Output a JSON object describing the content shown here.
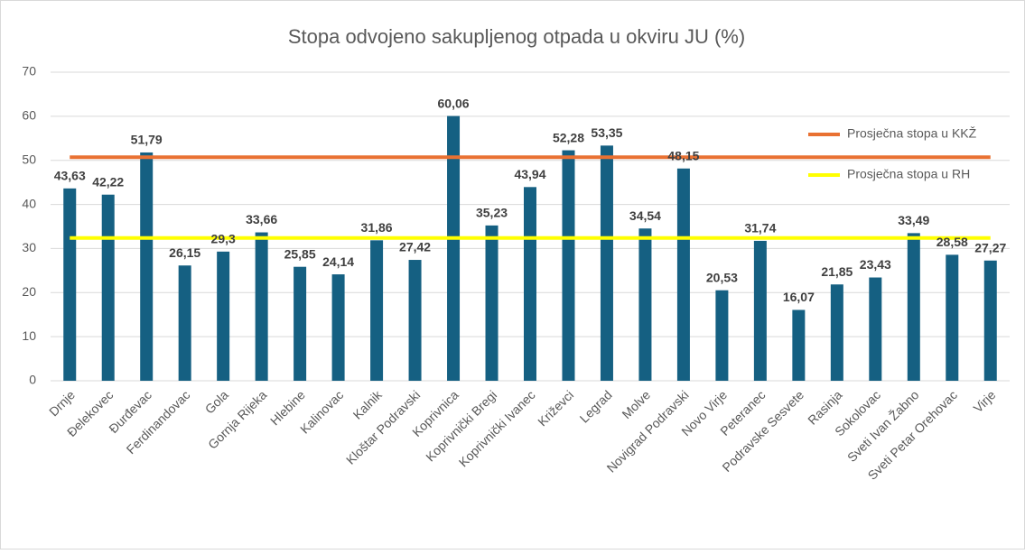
{
  "chart_data": {
    "type": "bar",
    "title": "Stopa odvojeno sakupljenog otpada u okviru JU (%)",
    "categories": [
      "Drnje",
      "Đelekovec",
      "Đurđevac",
      "Ferdinandovac",
      "Gola",
      "Gornja Rijeka",
      "Hlebine",
      "Kalinovac",
      "Kalnik",
      "Kloštar Podravski",
      "Koprivnica",
      "Koprivnički Bregi",
      "Koprivnički Ivanec",
      "Križevci",
      "Legrad",
      "Molve",
      "Novigrad Podravski",
      "Novo Virje",
      "Peteranec",
      "Podravske Sesvete",
      "Rasinja",
      "Sokolovac",
      "Sveti Ivan Žabno",
      "Sveti Petar Orehovac",
      "Virje"
    ],
    "values": [
      43.63,
      42.22,
      51.79,
      26.15,
      29.3,
      33.66,
      25.85,
      24.14,
      31.86,
      27.42,
      60.06,
      35.23,
      43.94,
      52.28,
      53.35,
      34.54,
      48.15,
      20.53,
      31.74,
      16.07,
      21.85,
      23.43,
      33.49,
      28.58,
      27.27
    ],
    "value_labels": [
      "43,63",
      "42,22",
      "51,79",
      "26,15",
      "29,3",
      "33,66",
      "25,85",
      "24,14",
      "31,86",
      "27,42",
      "60,06",
      "35,23",
      "43,94",
      "52,28",
      "53,35",
      "34,54",
      "48,15",
      "20,53",
      "31,74",
      "16,07",
      "21,85",
      "23,43",
      "33,49",
      "28,58",
      "27,27"
    ],
    "color": "#156082",
    "series": [
      {
        "name": "Prosječna stopa u KKŽ",
        "color": "#e97132",
        "values": [
          50.7,
          50.7,
          50.7,
          50.7,
          50.7,
          50.7,
          50.7,
          50.7,
          50.7,
          50.7,
          50.7,
          50.7,
          50.7,
          50.7,
          50.7,
          50.7,
          50.7,
          50.7,
          50.7,
          50.7,
          50.7,
          50.7,
          50.7,
          50.7,
          50.7
        ]
      },
      {
        "name": "Prosječna stopa u RH",
        "color": "#ffff00",
        "values": [
          32.4,
          32.4,
          32.4,
          32.4,
          32.4,
          32.4,
          32.4,
          32.4,
          32.4,
          32.4,
          32.4,
          32.4,
          32.4,
          32.4,
          32.4,
          32.4,
          32.4,
          32.4,
          32.4,
          32.4,
          32.4,
          32.4,
          32.4,
          32.4,
          32.4
        ]
      }
    ],
    "ylim": [
      0,
      70
    ],
    "yticks": [
      0,
      10,
      20,
      30,
      40,
      50,
      60,
      70
    ],
    "grid": true
  }
}
